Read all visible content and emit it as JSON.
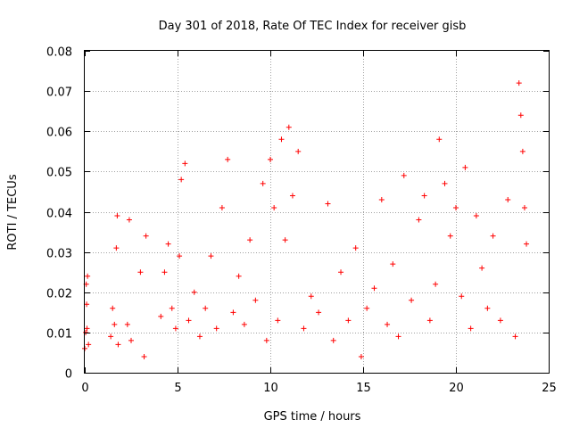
{
  "chart_data": {
    "type": "scatter",
    "title": "Day 301 of 2018, Rate Of TEC Index for receiver gisb",
    "xlabel": "GPS time / hours",
    "ylabel": "ROTI / TECUs",
    "xlim": [
      0,
      25
    ],
    "ylim": [
      0,
      0.08
    ],
    "xticks": [
      "0",
      "5",
      "10",
      "15",
      "20",
      "25"
    ],
    "yticks": [
      "0",
      "0.01",
      "0.02",
      "0.03",
      "0.04",
      "0.05",
      "0.06",
      "0.07",
      "0.08"
    ],
    "grid": true,
    "marker": "+",
    "color": "#ff0000",
    "series": [
      {
        "x": [
          0.0,
          0.05,
          0.08,
          0.1,
          0.12,
          0.15,
          0.2,
          1.4,
          1.5,
          1.6,
          1.7,
          1.75,
          1.8,
          2.3,
          2.4,
          2.5,
          3.0,
          3.2,
          3.3,
          4.1,
          4.3,
          4.5,
          4.7,
          4.9,
          5.1,
          5.2,
          5.4,
          5.6,
          5.9,
          6.2,
          6.5,
          6.8,
          7.1,
          7.4,
          7.7,
          8.0,
          8.3,
          8.6,
          8.9,
          9.2,
          9.6,
          9.8,
          10.0,
          10.2,
          10.4,
          10.6,
          10.8,
          11.0,
          11.2,
          11.5,
          11.8,
          12.2,
          12.6,
          13.1,
          13.4,
          13.8,
          14.2,
          14.6,
          14.9,
          15.2,
          15.6,
          16.0,
          16.3,
          16.6,
          16.9,
          17.2,
          17.6,
          18.0,
          18.3,
          18.6,
          18.9,
          19.1,
          19.4,
          19.7,
          20.0,
          20.3,
          20.5,
          20.8,
          21.1,
          21.4,
          21.7,
          22.0,
          22.4,
          22.8,
          23.2,
          23.4,
          23.5,
          23.6,
          23.7,
          23.8
        ],
        "y": [
          0.006,
          0.01,
          0.022,
          0.017,
          0.011,
          0.024,
          0.007,
          0.009,
          0.016,
          0.012,
          0.031,
          0.039,
          0.007,
          0.012,
          0.038,
          0.008,
          0.025,
          0.004,
          0.034,
          0.014,
          0.025,
          0.032,
          0.016,
          0.011,
          0.029,
          0.048,
          0.052,
          0.013,
          0.02,
          0.009,
          0.016,
          0.029,
          0.011,
          0.041,
          0.053,
          0.015,
          0.024,
          0.012,
          0.033,
          0.018,
          0.047,
          0.008,
          0.053,
          0.041,
          0.013,
          0.058,
          0.033,
          0.061,
          0.044,
          0.055,
          0.011,
          0.019,
          0.015,
          0.042,
          0.008,
          0.025,
          0.013,
          0.031,
          0.004,
          0.016,
          0.021,
          0.043,
          0.012,
          0.027,
          0.009,
          0.049,
          0.018,
          0.038,
          0.044,
          0.013,
          0.022,
          0.058,
          0.047,
          0.034,
          0.041,
          0.019,
          0.051,
          0.011,
          0.039,
          0.026,
          0.016,
          0.034,
          0.013,
          0.043,
          0.009,
          0.072,
          0.064,
          0.055,
          0.041,
          0.032
        ]
      }
    ]
  }
}
